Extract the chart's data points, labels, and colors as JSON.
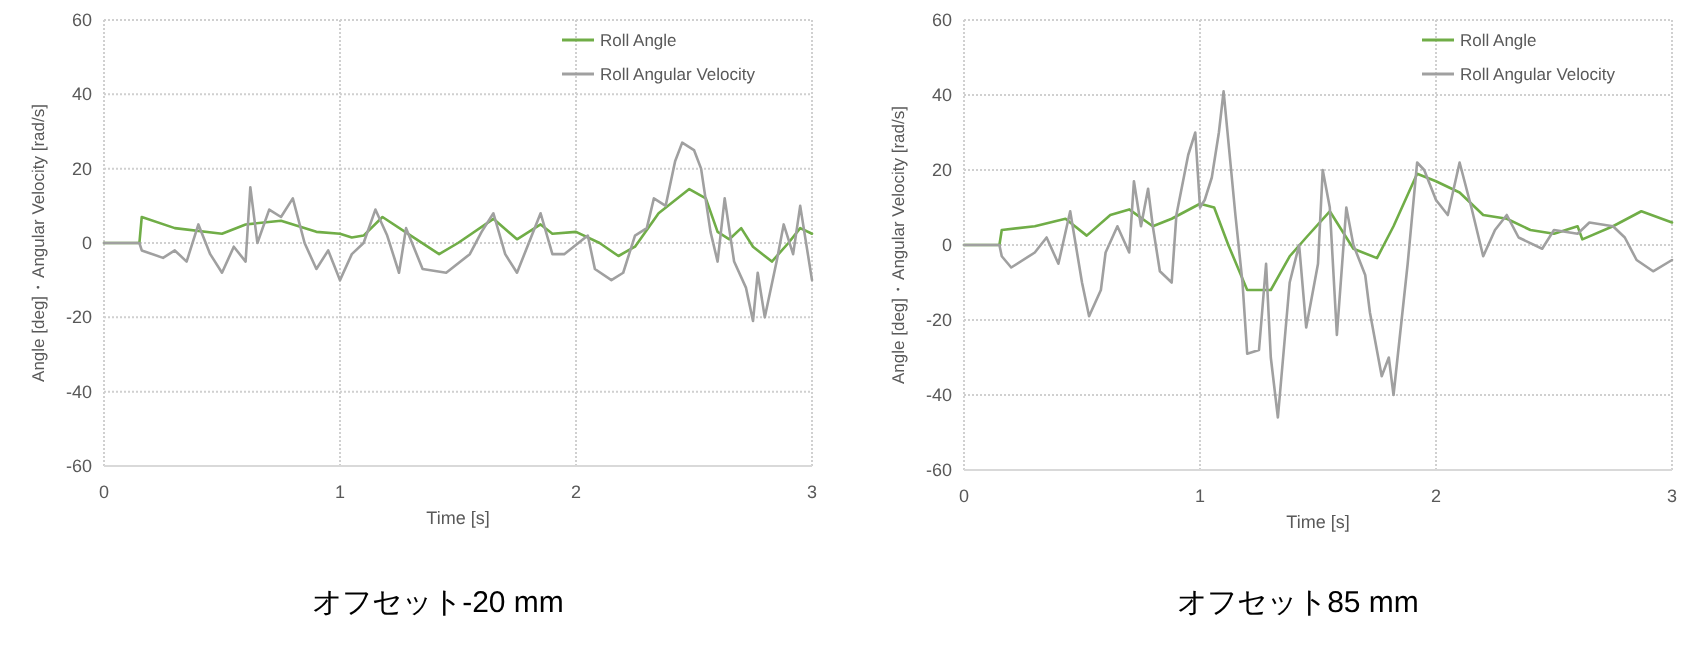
{
  "chart_data": [
    {
      "type": "line",
      "title": "オフセット-20 mm",
      "xlabel": "Time [s]",
      "ylabel": "Angle [deg]・Angular Velocity [rad/s]",
      "xlim": [
        0,
        3
      ],
      "ylim": [
        -60,
        60
      ],
      "xticks": [
        0,
        1,
        2,
        3
      ],
      "yticks": [
        -60,
        -40,
        -20,
        0,
        20,
        40,
        60
      ],
      "grid": true,
      "legend": "top right",
      "series": [
        {
          "name": "Roll Angle",
          "color": "#70ad47",
          "x": [
            0,
            0.15,
            0.16,
            0.3,
            0.5,
            0.6,
            0.75,
            0.9,
            1.0,
            1.05,
            1.1,
            1.18,
            1.3,
            1.42,
            1.5,
            1.65,
            1.75,
            1.85,
            1.9,
            2.0,
            2.1,
            2.18,
            2.25,
            2.35,
            2.48,
            2.55,
            2.6,
            2.65,
            2.7,
            2.75,
            2.83,
            2.9,
            2.95,
            3.0
          ],
          "values": [
            0,
            0,
            7,
            4,
            2.5,
            5,
            6,
            3,
            2.5,
            1.5,
            2,
            7,
            2,
            -3,
            0,
            6.5,
            1,
            5,
            2.5,
            3,
            0,
            -3.5,
            -1,
            8,
            14.5,
            12,
            3,
            1,
            4,
            -1,
            -5,
            0,
            4,
            2.5
          ]
        },
        {
          "name": "Roll Angular Velocity",
          "color": "#a0a0a0",
          "x": [
            0,
            0.15,
            0.16,
            0.25,
            0.3,
            0.35,
            0.4,
            0.45,
            0.5,
            0.55,
            0.6,
            0.62,
            0.65,
            0.7,
            0.75,
            0.8,
            0.85,
            0.9,
            0.95,
            1.0,
            1.05,
            1.1,
            1.15,
            1.2,
            1.25,
            1.28,
            1.35,
            1.45,
            1.55,
            1.6,
            1.65,
            1.7,
            1.75,
            1.8,
            1.85,
            1.9,
            1.95,
            2.05,
            2.08,
            2.15,
            2.2,
            2.25,
            2.3,
            2.33,
            2.38,
            2.42,
            2.45,
            2.5,
            2.53,
            2.57,
            2.6,
            2.63,
            2.67,
            2.72,
            2.75,
            2.77,
            2.8,
            2.85,
            2.88,
            2.92,
            2.95,
            3.0
          ],
          "values": [
            0,
            0,
            -2,
            -4,
            -2,
            -5,
            5,
            -3,
            -8,
            -1,
            -5,
            15,
            0,
            9,
            7,
            12,
            0,
            -7,
            -2,
            -10,
            -3,
            0,
            9,
            2,
            -8,
            4,
            -7,
            -8,
            -3,
            3,
            8,
            -3,
            -8,
            0,
            8,
            -3,
            -3,
            2,
            -7,
            -10,
            -8,
            2,
            4,
            12,
            10,
            22,
            27,
            25,
            20,
            3,
            -5,
            12,
            -5,
            -12,
            -21,
            -8,
            -20,
            -5,
            5,
            -3,
            10,
            -10
          ]
        }
      ]
    },
    {
      "type": "line",
      "title": "オフセット85 mm",
      "xlabel": "Time [s]",
      "ylabel": "Angle [deg]・Angular Velocity [rad/s]",
      "xlim": [
        0,
        3
      ],
      "ylim": [
        -60,
        60
      ],
      "xticks": [
        0,
        1,
        2,
        3
      ],
      "yticks": [
        -60,
        -40,
        -20,
        0,
        20,
        40,
        60
      ],
      "grid": true,
      "legend": "top right",
      "series": [
        {
          "name": "Roll Angle",
          "color": "#70ad47",
          "x": [
            0,
            0.15,
            0.16,
            0.3,
            0.43,
            0.52,
            0.62,
            0.7,
            0.8,
            0.88,
            1.0,
            1.06,
            1.12,
            1.2,
            1.3,
            1.38,
            1.45,
            1.55,
            1.62,
            1.65,
            1.75,
            1.82,
            1.92,
            2.0,
            2.1,
            2.2,
            2.3,
            2.4,
            2.5,
            2.6,
            2.62,
            2.75,
            2.87,
            3.0
          ],
          "values": [
            0,
            0,
            4,
            5,
            7,
            2.5,
            8,
            9.5,
            5,
            7,
            11,
            10,
            0,
            -12,
            -12,
            -3,
            2,
            9,
            2,
            -1,
            -3.5,
            5,
            19,
            17,
            14,
            8,
            7,
            4,
            3,
            5,
            1.5,
            5,
            9,
            6
          ]
        },
        {
          "name": "Roll Angular Velocity",
          "color": "#a0a0a0",
          "x": [
            0,
            0.15,
            0.16,
            0.2,
            0.3,
            0.35,
            0.4,
            0.45,
            0.5,
            0.53,
            0.58,
            0.6,
            0.65,
            0.7,
            0.72,
            0.75,
            0.78,
            0.8,
            0.83,
            0.88,
            0.9,
            0.95,
            0.98,
            1.0,
            1.02,
            1.05,
            1.08,
            1.1,
            1.15,
            1.18,
            1.2,
            1.25,
            1.28,
            1.3,
            1.33,
            1.38,
            1.42,
            1.45,
            1.5,
            1.52,
            1.55,
            1.58,
            1.62,
            1.65,
            1.7,
            1.72,
            1.77,
            1.8,
            1.82,
            1.88,
            1.92,
            1.95,
            2.0,
            2.05,
            2.1,
            2.15,
            2.2,
            2.25,
            2.3,
            2.35,
            2.45,
            2.5,
            2.6,
            2.65,
            2.75,
            2.8,
            2.85,
            2.92,
            3.0
          ],
          "values": [
            0,
            0,
            -3,
            -6,
            -2,
            2,
            -5,
            9,
            -10,
            -19,
            -12,
            -2,
            5,
            -2,
            17,
            5,
            15,
            5,
            -7,
            -10,
            8,
            24,
            30,
            10,
            12,
            18,
            30,
            41,
            8,
            -10,
            -29,
            -28,
            -5,
            -30,
            -46,
            -10,
            0,
            -22,
            -5,
            20,
            10,
            -24,
            10,
            0,
            -8,
            -18,
            -35,
            -30,
            -40,
            -5,
            22,
            20,
            12,
            8,
            22,
            10,
            -3,
            4,
            8,
            2,
            -1,
            4,
            3,
            6,
            5,
            2,
            -4,
            -7,
            -4
          ]
        }
      ]
    }
  ]
}
